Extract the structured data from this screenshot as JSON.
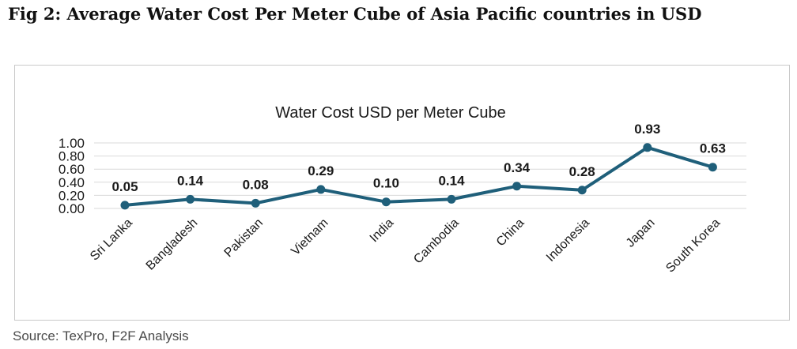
{
  "figure": {
    "heading": "Fig 2: Average Water Cost Per Meter Cube of Asia Pacific countries in USD",
    "source": "Source: TexPro, F2F Analysis"
  },
  "colors": {
    "line": "#1f5f7a",
    "grid": "#d9d9d9",
    "text": "#1a1a1a"
  },
  "chart_data": {
    "type": "line",
    "title": "Water Cost USD per Meter Cube",
    "xlabel": "",
    "ylabel": "",
    "categories": [
      "Sri Lanka",
      "Bangladesh",
      "Pakistan",
      "Vietnam",
      "India",
      "Cambodia",
      "China",
      "Indonesia",
      "Japan",
      "South Korea"
    ],
    "series": [
      {
        "name": "Water Cost USD per Meter Cube",
        "values": [
          0.05,
          0.14,
          0.08,
          0.29,
          0.1,
          0.14,
          0.34,
          0.28,
          0.93,
          0.63
        ]
      }
    ],
    "value_labels": [
      "0.05",
      "0.14",
      "0.08",
      "0.29",
      "0.10",
      "0.14",
      "0.34",
      "0.28",
      "0.93",
      "0.63"
    ],
    "yticks": [
      "0.00",
      "0.20",
      "0.40",
      "0.60",
      "0.80",
      "1.00"
    ],
    "ylim": [
      0,
      1
    ],
    "grid": true,
    "legend": "none"
  }
}
